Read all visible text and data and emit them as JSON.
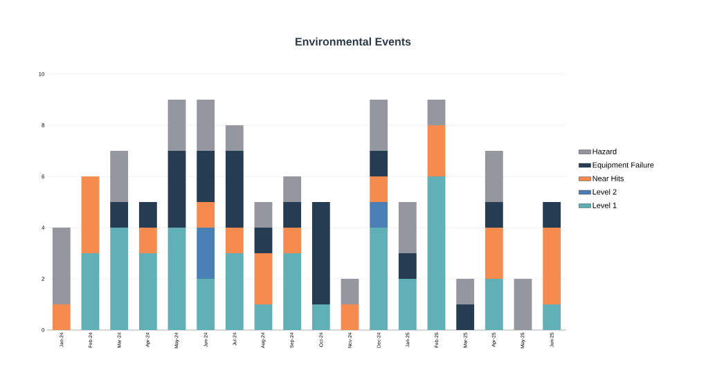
{
  "chart_data": {
    "type": "bar",
    "title": "Environmental Events",
    "stacked": true,
    "categories": [
      "Jan-24",
      "Feb-24",
      "Mar-24",
      "Apr-24",
      "May-24",
      "Jun-24",
      "Jul-24",
      "Aug-24",
      "Sep-24",
      "Oct-24",
      "Nov-24",
      "Dec-24",
      "Jan-25",
      "Feb-25",
      "Mar-25",
      "Apr-25",
      "May-25",
      "Jun-25"
    ],
    "series": [
      {
        "name": "Level 1",
        "color": "#62b0b7",
        "values": [
          0,
          3,
          4,
          3,
          4,
          2,
          3,
          1,
          3,
          1,
          0,
          4,
          2,
          6,
          0,
          2,
          0,
          1
        ]
      },
      {
        "name": "Level 2",
        "color": "#4a7fb5",
        "values": [
          0,
          0,
          0,
          0,
          0,
          2,
          0,
          0,
          0,
          0,
          0,
          1,
          0,
          0,
          0,
          0,
          0,
          0
        ]
      },
      {
        "name": "Near Hits",
        "color": "#f68b4f",
        "values": [
          1,
          3,
          0,
          1,
          0,
          1,
          1,
          2,
          1,
          0,
          1,
          1,
          0,
          2,
          0,
          2,
          0,
          3
        ]
      },
      {
        "name": "Equipment Failure",
        "color": "#253c52",
        "values": [
          0,
          0,
          1,
          1,
          3,
          2,
          3,
          1,
          1,
          4,
          0,
          1,
          1,
          0,
          1,
          1,
          0,
          1
        ]
      },
      {
        "name": "Hazard",
        "color": "#9496a0",
        "values": [
          3,
          0,
          2,
          0,
          2,
          2,
          1,
          1,
          1,
          0,
          1,
          2,
          2,
          1,
          1,
          2,
          2,
          0
        ]
      }
    ],
    "ylim": [
      0,
      10
    ],
    "yticks": [
      0,
      2,
      4,
      6,
      8,
      10
    ],
    "grid": "y",
    "legend": "right"
  }
}
